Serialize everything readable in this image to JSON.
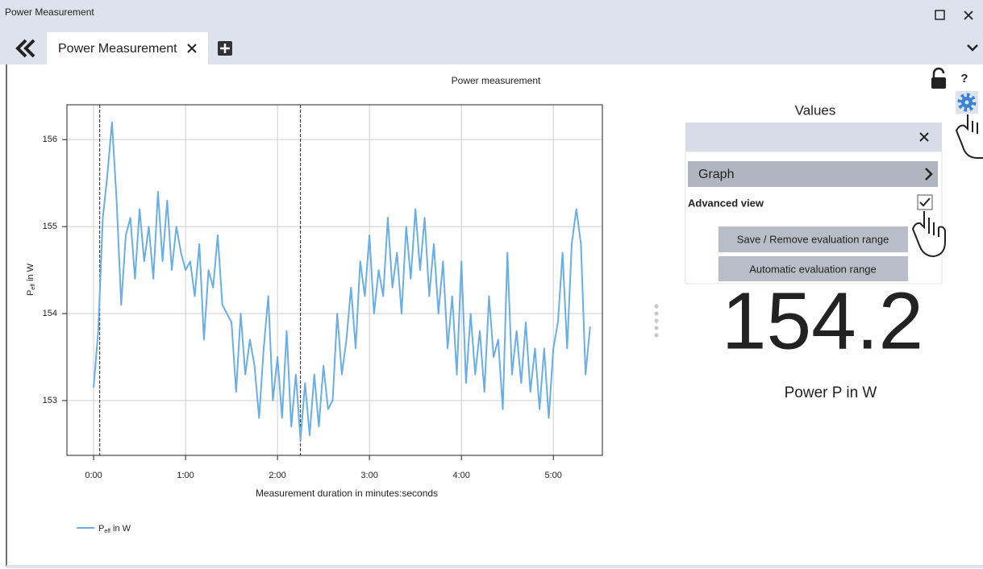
{
  "window": {
    "title": "Power Measurement"
  },
  "tab": {
    "label": "Power Measurement"
  },
  "chart_data": {
    "type": "line",
    "title": "Power measurement",
    "xlabel": "Measurement duration in minutes:seconds",
    "ylabel": {
      "main": "P",
      "sub": "eff",
      "unit": " in W"
    },
    "x": [
      0,
      3,
      6,
      9,
      12,
      15,
      18,
      21,
      24,
      27,
      30,
      33,
      36,
      39,
      42,
      45,
      48,
      51,
      54,
      57,
      60,
      63,
      66,
      69,
      72,
      75,
      78,
      81,
      84,
      87,
      90,
      93,
      96,
      99,
      102,
      105,
      108,
      111,
      114,
      117,
      120,
      123,
      126,
      129,
      132,
      135,
      138,
      141,
      144,
      147,
      150,
      153,
      156,
      159,
      162,
      165,
      168,
      171,
      174,
      177,
      180,
      183,
      186,
      189,
      192,
      195,
      198,
      201,
      204,
      207,
      210,
      213,
      216,
      219,
      222,
      225,
      228,
      231,
      234,
      237,
      240,
      243,
      246,
      249,
      252,
      255,
      258,
      261,
      264,
      267,
      270,
      273,
      276,
      279,
      282,
      285,
      288,
      291,
      294,
      297,
      300,
      303,
      306,
      309,
      312,
      315,
      318,
      321,
      324
    ],
    "series": [
      {
        "name": {
          "main": "P",
          "sub": "eff",
          "unit": " in W"
        },
        "color": "#6aaee8",
        "values": [
          153.15,
          153.8,
          155.1,
          155.6,
          156.2,
          155.3,
          154.1,
          154.9,
          155.1,
          154.4,
          155.2,
          154.6,
          155.0,
          154.4,
          155.4,
          154.6,
          155.3,
          154.5,
          155.0,
          154.7,
          154.5,
          154.6,
          154.2,
          154.8,
          153.7,
          154.5,
          154.3,
          154.9,
          154.1,
          154.0,
          153.9,
          153.1,
          154.0,
          153.3,
          153.7,
          153.4,
          152.8,
          153.6,
          154.2,
          153.0,
          153.5,
          152.8,
          153.8,
          152.7,
          153.3,
          152.55,
          153.2,
          152.6,
          153.3,
          152.7,
          153.4,
          152.9,
          153.0,
          154.0,
          153.3,
          153.7,
          154.3,
          153.6,
          154.6,
          154.2,
          154.9,
          154.0,
          154.5,
          154.2,
          155.1,
          154.3,
          154.7,
          154.0,
          155.0,
          154.4,
          155.2,
          154.5,
          155.1,
          154.2,
          154.8,
          154.0,
          154.6,
          153.6,
          154.2,
          153.3,
          154.6,
          153.2,
          154.0,
          153.3,
          153.8,
          153.1,
          154.2,
          153.5,
          153.7,
          152.9,
          154.7,
          153.3,
          153.8,
          153.2,
          153.9,
          153.1,
          153.6,
          152.9,
          153.6,
          152.8,
          153.6,
          153.9,
          154.7,
          153.6,
          154.8,
          155.2,
          154.8,
          153.3,
          153.85
        ]
      }
    ],
    "markers": [
      4,
      135
    ],
    "xlim": [
      -17.4,
      332
    ],
    "ylim": [
      152.37,
      156.4
    ],
    "xticks": [
      {
        "value": 0,
        "label": "0:00"
      },
      {
        "value": 60,
        "label": "1:00"
      },
      {
        "value": 120,
        "label": "2:00"
      },
      {
        "value": 180,
        "label": "3:00"
      },
      {
        "value": 240,
        "label": "4:00"
      },
      {
        "value": 300,
        "label": "5:00"
      }
    ],
    "yticks": [
      153,
      154,
      155,
      156
    ],
    "grid": true
  },
  "panel": {
    "title": "Values",
    "graph": "Graph",
    "advanced": "Advanced view",
    "buttons": [
      "Save / Remove evaluation range",
      "Automatic evaluation range"
    ],
    "value": "154.2",
    "caption": "Power P in W"
  }
}
